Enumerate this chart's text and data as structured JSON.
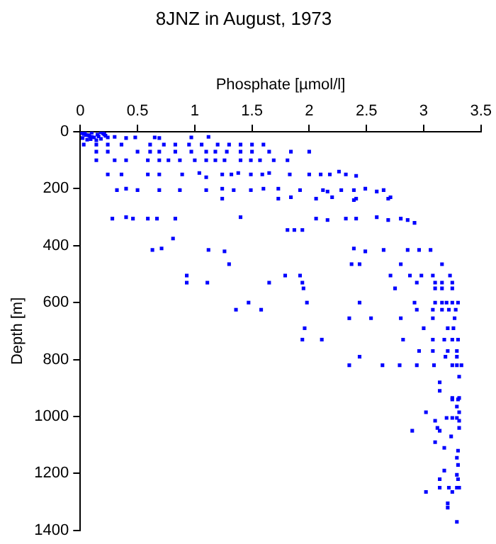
{
  "chart_data": {
    "type": "scatter",
    "title": "8JNZ in August, 1973",
    "xlabel": "Phosphate [µmol/l]",
    "ylabel": "Depth [m]",
    "xlim": [
      0,
      3.5
    ],
    "xticks": [
      0,
      0.5,
      1,
      1.5,
      2,
      2.5,
      3,
      3.5
    ],
    "ylim": [
      1400,
      0
    ],
    "yticks": [
      0,
      200,
      400,
      600,
      800,
      1000,
      1200,
      1400
    ],
    "grid": false,
    "legend": false,
    "marker": "square",
    "series": [
      {
        "color": "#0000ff",
        "x": [
          0.01,
          0.03,
          0.05,
          0.08,
          0.1,
          0.12,
          0.15,
          0.18,
          0.2,
          0.22,
          0.02,
          0.06,
          0.1,
          0.14,
          0.18,
          0.04,
          0.09,
          0.16,
          0.21,
          0.07,
          0.24,
          0.3,
          0.4,
          0.48,
          0.65,
          0.69,
          0.97,
          1.12,
          0.03,
          0.14,
          0.24,
          0.36,
          0.61,
          0.73,
          0.83,
          0.95,
          1.06,
          1.2,
          1.3,
          1.4,
          1.5,
          1.6,
          0.14,
          0.24,
          0.5,
          0.61,
          0.69,
          0.83,
          0.97,
          1.1,
          1.18,
          1.28,
          1.4,
          1.5,
          1.65,
          1.84,
          2.0,
          0.14,
          0.3,
          0.4,
          0.59,
          0.69,
          0.77,
          0.87,
          1.0,
          1.1,
          1.18,
          1.26,
          1.4,
          1.49,
          1.57,
          1.69,
          1.81,
          0.24,
          0.36,
          0.59,
          0.69,
          0.89,
          1.04,
          1.1,
          1.24,
          1.32,
          1.38,
          1.49,
          1.59,
          1.65,
          1.83,
          2.0,
          2.1,
          2.18,
          2.26,
          2.32,
          2.41,
          0.32,
          0.4,
          0.5,
          0.69,
          0.87,
          1.1,
          1.24,
          1.34,
          1.49,
          1.6,
          1.73,
          1.92,
          2.12,
          2.16,
          2.28,
          2.39,
          2.49,
          2.59,
          2.65,
          1.24,
          1.73,
          1.84,
          2.06,
          2.2,
          2.39,
          2.41,
          2.69,
          2.71,
          0.28,
          0.4,
          0.46,
          0.59,
          0.67,
          0.83,
          1.4,
          1.94,
          2.06,
          2.16,
          2.32,
          2.41,
          2.59,
          2.69,
          2.8,
          2.86,
          2.92,
          1.81,
          1.87,
          0.81,
          0.63,
          0.71,
          1.12,
          1.26,
          2.39,
          2.49,
          2.65,
          2.86,
          2.96,
          3.06,
          1.3,
          2.37,
          2.44,
          2.8,
          3.16,
          0.93,
          1.79,
          1.92,
          2.71,
          2.88,
          2.98,
          3.08,
          3.23,
          0.93,
          1.11,
          1.65,
          1.94,
          2.94,
          3.1,
          3.16,
          3.25,
          1.95,
          2.75,
          3.1,
          3.16,
          3.25,
          1.47,
          1.98,
          2.44,
          2.92,
          3.1,
          3.16,
          3.2,
          3.25,
          3.3,
          1.36,
          1.58,
          2.94,
          3.08,
          3.16,
          3.22,
          3.28,
          2.35,
          2.54,
          2.8,
          3.08,
          3.27,
          1.96,
          3.0,
          3.21,
          3.26,
          1.94,
          2.11,
          2.82,
          3.08,
          3.18,
          3.25,
          3.3,
          2.96,
          3.08,
          3.21,
          3.29,
          2.44,
          3.19,
          3.29,
          2.35,
          2.64,
          2.79,
          2.94,
          3.09,
          3.25,
          3.29,
          3.33,
          3.31,
          3.14,
          3.14,
          3.25,
          3.31,
          3.25,
          3.3,
          3.29,
          3.02,
          3.31,
          3.2,
          3.25,
          3.29,
          3.1,
          3.31,
          3.12,
          3.31,
          2.9,
          3.14,
          3.24,
          3.1,
          3.18,
          3.3,
          3.29,
          3.3,
          3.18,
          3.29,
          3.14,
          3.3,
          3.14,
          3.22,
          3.29,
          3.31,
          3.02,
          3.25,
          3.21,
          3.21,
          3.29
        ],
        "values": [
          5,
          8,
          12,
          15,
          3,
          20,
          10,
          25,
          6,
          14,
          22,
          28,
          18,
          30,
          2,
          4,
          26,
          16,
          9,
          12,
          20,
          18,
          22,
          20,
          20,
          22,
          20,
          18,
          45,
          45,
          45,
          45,
          45,
          45,
          45,
          45,
          45,
          45,
          45,
          45,
          45,
          45,
          70,
          70,
          70,
          70,
          70,
          70,
          70,
          70,
          70,
          70,
          70,
          70,
          70,
          70,
          70,
          100,
          100,
          100,
          100,
          100,
          100,
          100,
          100,
          100,
          100,
          100,
          100,
          100,
          100,
          100,
          100,
          150,
          150,
          150,
          150,
          150,
          145,
          160,
          150,
          150,
          145,
          150,
          150,
          145,
          150,
          150,
          150,
          150,
          140,
          150,
          155,
          205,
          200,
          205,
          205,
          205,
          205,
          200,
          205,
          205,
          200,
          200,
          205,
          205,
          210,
          205,
          205,
          200,
          210,
          205,
          235,
          235,
          230,
          235,
          230,
          240,
          235,
          235,
          230,
          305,
          300,
          305,
          305,
          305,
          305,
          300,
          345,
          305,
          310,
          305,
          305,
          300,
          310,
          305,
          310,
          320,
          345,
          345,
          375,
          415,
          410,
          415,
          420,
          410,
          420,
          415,
          415,
          415,
          415,
          465,
          465,
          465,
          465,
          465,
          505,
          505,
          505,
          505,
          505,
          505,
          505,
          505,
          530,
          530,
          530,
          530,
          530,
          530,
          530,
          530,
          550,
          550,
          550,
          550,
          550,
          600,
          600,
          600,
          600,
          600,
          600,
          600,
          600,
          600,
          625,
          625,
          625,
          625,
          625,
          625,
          625,
          655,
          655,
          655,
          655,
          655,
          690,
          690,
          690,
          690,
          730,
          730,
          730,
          730,
          730,
          730,
          730,
          770,
          770,
          770,
          770,
          790,
          790,
          790,
          820,
          820,
          820,
          820,
          820,
          820,
          820,
          820,
          860,
          880,
          910,
          935,
          935,
          940,
          940,
          965,
          985,
          985,
          1005,
          1005,
          1005,
          1015,
          1015,
          1040,
          1040,
          1050,
          1050,
          1070,
          1090,
          1110,
          1120,
          1145,
          1170,
          1190,
          1205,
          1220,
          1220,
          1250,
          1250,
          1250,
          1250,
          1265,
          1265,
          1305,
          1320,
          1370
        ]
      }
    ]
  }
}
